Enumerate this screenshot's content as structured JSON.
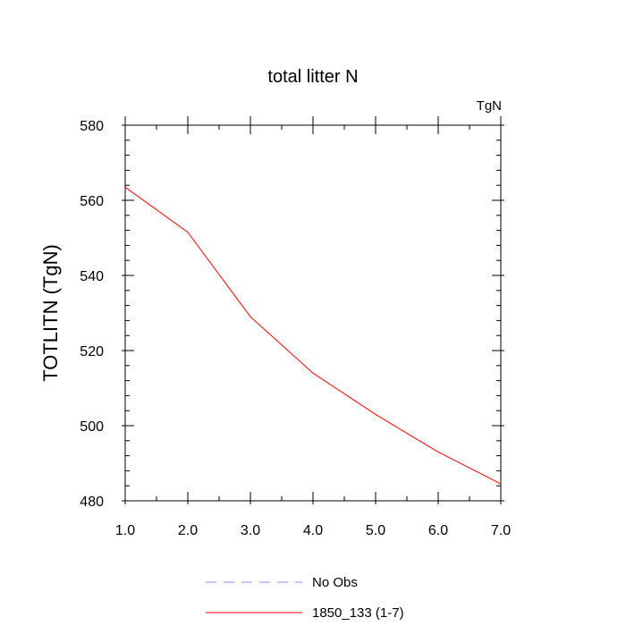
{
  "chart_data": {
    "type": "line",
    "title": "total litter N",
    "units_label": "TgN",
    "ylabel": "TOTLITN  (TgN)",
    "xlabel": "",
    "xlim": [
      1,
      7
    ],
    "ylim": [
      480,
      580
    ],
    "x_ticks": [
      1,
      2,
      3,
      4,
      5,
      6,
      7
    ],
    "x_tick_labels": [
      "1.0",
      "2.0",
      "3.0",
      "4.0",
      "5.0",
      "6.0",
      "7.0"
    ],
    "y_ticks": [
      480,
      500,
      520,
      540,
      560,
      580
    ],
    "y_tick_labels": [
      "480",
      "500",
      "520",
      "540",
      "560",
      "580"
    ],
    "y_minor_step": 4,
    "x_minor_step": 0.5,
    "grid": false,
    "series": [
      {
        "name": "1850_133 (1-7)",
        "color": "#ff0000",
        "dash": "solid",
        "x": [
          1,
          2,
          3,
          4,
          5,
          6,
          7
        ],
        "values": [
          563.5,
          551.5,
          529.0,
          514.0,
          503.0,
          493.0,
          484.5
        ]
      }
    ],
    "legend": {
      "placement": "bottom-center",
      "entries": [
        {
          "label": "No Obs",
          "color": "#8c8cff",
          "dash": "dashed"
        },
        {
          "label": "1850_133 (1-7)",
          "color": "#ff0000",
          "dash": "solid"
        }
      ]
    }
  }
}
